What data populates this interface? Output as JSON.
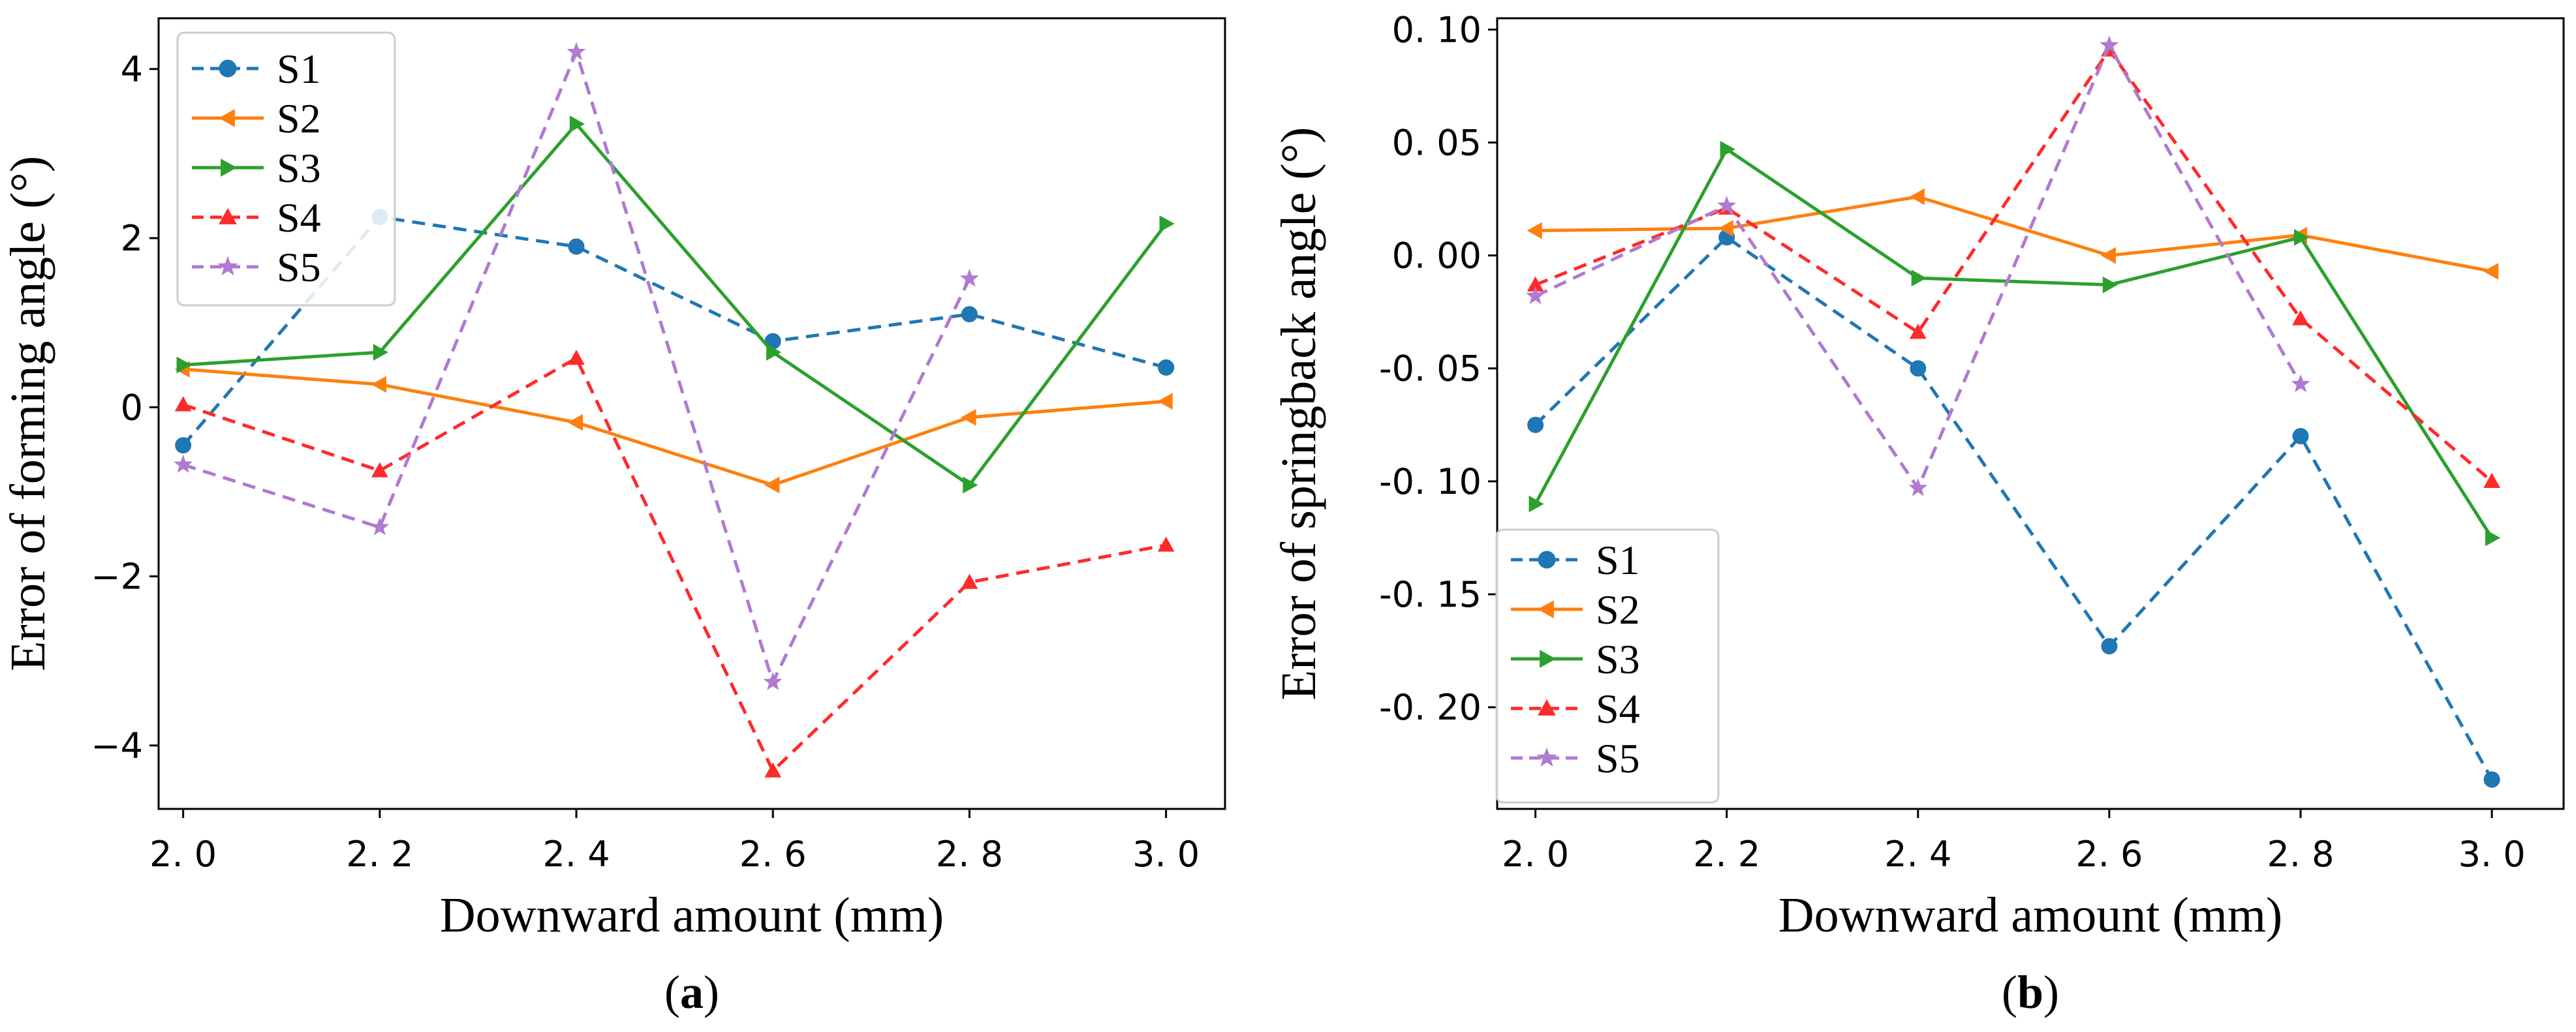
{
  "chart_data": [
    {
      "type": "line",
      "panel_label": "a",
      "title": "",
      "xlabel": "Downward amount (mm)",
      "ylabel": "Error of forming angle (°)",
      "x": [
        2.0,
        2.2,
        2.4,
        2.6,
        2.8,
        3.0
      ],
      "x_tick_labels": [
        "2. 0",
        "2. 2",
        "2. 4",
        "2. 6",
        "2. 8",
        "3. 0"
      ],
      "xlim": [
        1.975,
        3.06
      ],
      "ylim": [
        -4.75,
        4.6
      ],
      "y_ticks": [
        -4,
        -2,
        0,
        2,
        4
      ],
      "y_tick_labels": [
        "−4",
        "−2",
        "0",
        "2",
        "4"
      ],
      "grid": false,
      "legend_position": "top-left",
      "series": [
        {
          "name": "S1",
          "values": [
            -0.45,
            2.25,
            1.9,
            0.78,
            1.1,
            0.47
          ],
          "color": "#1f77b4",
          "dash": "dashed",
          "marker": "circle"
        },
        {
          "name": "S2",
          "values": [
            0.45,
            0.27,
            -0.18,
            -0.92,
            -0.12,
            0.07
          ],
          "color": "#ff7f0e",
          "dash": "solid",
          "marker": "triangle-left"
        },
        {
          "name": "S3",
          "values": [
            0.5,
            0.65,
            3.35,
            0.65,
            -0.92,
            2.17
          ],
          "color": "#2ca02c",
          "dash": "solid",
          "marker": "triangle-right"
        },
        {
          "name": "S4",
          "values": [
            0.03,
            -0.75,
            0.58,
            -4.3,
            -2.07,
            -1.63
          ],
          "color": "#ff2a2a",
          "dash": "dashed",
          "marker": "triangle-up"
        },
        {
          "name": "S5",
          "values": [
            -0.68,
            -1.42,
            4.2,
            -3.25,
            1.52,
            null
          ],
          "color": "#b07ad0",
          "dash": "dashed",
          "marker": "star"
        }
      ]
    },
    {
      "type": "line",
      "panel_label": "b",
      "title": "",
      "xlabel": "Downward amount (mm)",
      "ylabel": "Error of springback angle (°)",
      "x": [
        2.0,
        2.2,
        2.4,
        2.6,
        2.8,
        3.0
      ],
      "x_tick_labels": [
        "2. 0",
        "2. 2",
        "2. 4",
        "2. 6",
        "2. 8",
        "3. 0"
      ],
      "xlim": [
        1.96,
        3.075
      ],
      "ylim": [
        -0.245,
        0.105
      ],
      "y_ticks": [
        -0.2,
        -0.15,
        -0.1,
        -0.05,
        0.0,
        0.05,
        0.1
      ],
      "y_tick_labels": [
        "-0. 20",
        "-0. 15",
        "-0. 10",
        "-0. 05",
        "0. 00",
        "0. 05",
        "0. 10"
      ],
      "grid": false,
      "legend_position": "bottom-left",
      "series": [
        {
          "name": "S1",
          "values": [
            -0.075,
            0.008,
            -0.05,
            -0.173,
            -0.08,
            -0.232
          ],
          "color": "#1f77b4",
          "dash": "dashed",
          "marker": "circle"
        },
        {
          "name": "S2",
          "values": [
            0.011,
            0.012,
            0.026,
            0.0,
            0.009,
            -0.007
          ],
          "color": "#ff7f0e",
          "dash": "solid",
          "marker": "triangle-left"
        },
        {
          "name": "S3",
          "values": [
            -0.11,
            0.047,
            -0.01,
            -0.013,
            0.008,
            -0.125
          ],
          "color": "#2ca02c",
          "dash": "solid",
          "marker": "triangle-right"
        },
        {
          "name": "S4",
          "values": [
            -0.013,
            0.021,
            -0.034,
            0.091,
            -0.028,
            -0.1
          ],
          "color": "#ff2a2a",
          "dash": "dashed",
          "marker": "triangle-up"
        },
        {
          "name": "S5",
          "values": [
            -0.018,
            0.022,
            -0.103,
            0.093,
            -0.057,
            null
          ],
          "color": "#b07ad0",
          "dash": "dashed",
          "marker": "star"
        }
      ]
    }
  ]
}
